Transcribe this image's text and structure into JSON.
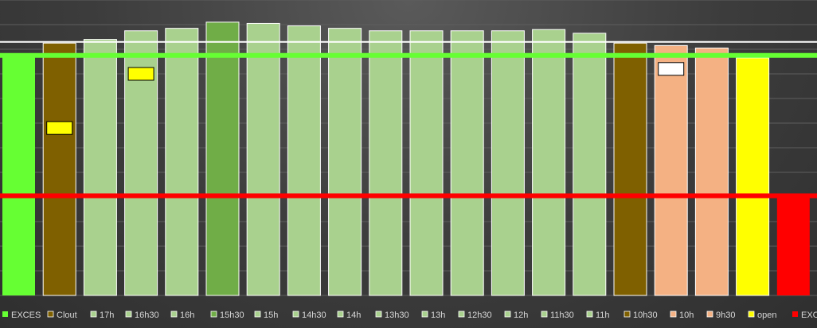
{
  "chart_data": {
    "type": "bar",
    "categories": [
      "EXCES",
      "Clout",
      "17h",
      "16h30",
      "16h",
      "15h30",
      "15h",
      "14h30",
      "14h",
      "13h30",
      "13h",
      "12h30",
      "12h",
      "11h30",
      "11h",
      "10h30",
      "10h",
      "9h30",
      "open",
      "EXCES"
    ],
    "values": [
      98,
      102.5,
      104,
      107.5,
      108.5,
      111,
      110.5,
      109.5,
      108.5,
      107.5,
      107.5,
      107.5,
      107.5,
      108,
      106.5,
      102.5,
      101.5,
      100.5,
      96.5,
      40
    ],
    "colors": [
      "#66ff33",
      "#7f6000",
      "#a9d18e",
      "#a9d18e",
      "#a9d18e",
      "#70ad47",
      "#a9d18e",
      "#a9d18e",
      "#a9d18e",
      "#a9d18e",
      "#a9d18e",
      "#a9d18e",
      "#a9d18e",
      "#a9d18e",
      "#a9d18e",
      "#7f6000",
      "#f4b183",
      "#f4b183",
      "#ffff00",
      "#ff0000"
    ],
    "markers": [
      {
        "category_index": 1,
        "value": 68,
        "color": "#ffff00"
      },
      {
        "category_index": 3,
        "value": 90,
        "color": "#ffff00"
      },
      {
        "category_index": 16,
        "value": 92,
        "color": "#ffffff"
      }
    ],
    "reference_lines": [
      {
        "value": 103,
        "color": "#ffffff"
      },
      {
        "value": 97.5,
        "color": "#66ff33"
      },
      {
        "value": 40.5,
        "color": "#ff0000"
      }
    ],
    "ylim": [
      0,
      120
    ],
    "grid": true,
    "legend_position": "bottom",
    "title": "",
    "xlabel": "",
    "ylabel": ""
  }
}
